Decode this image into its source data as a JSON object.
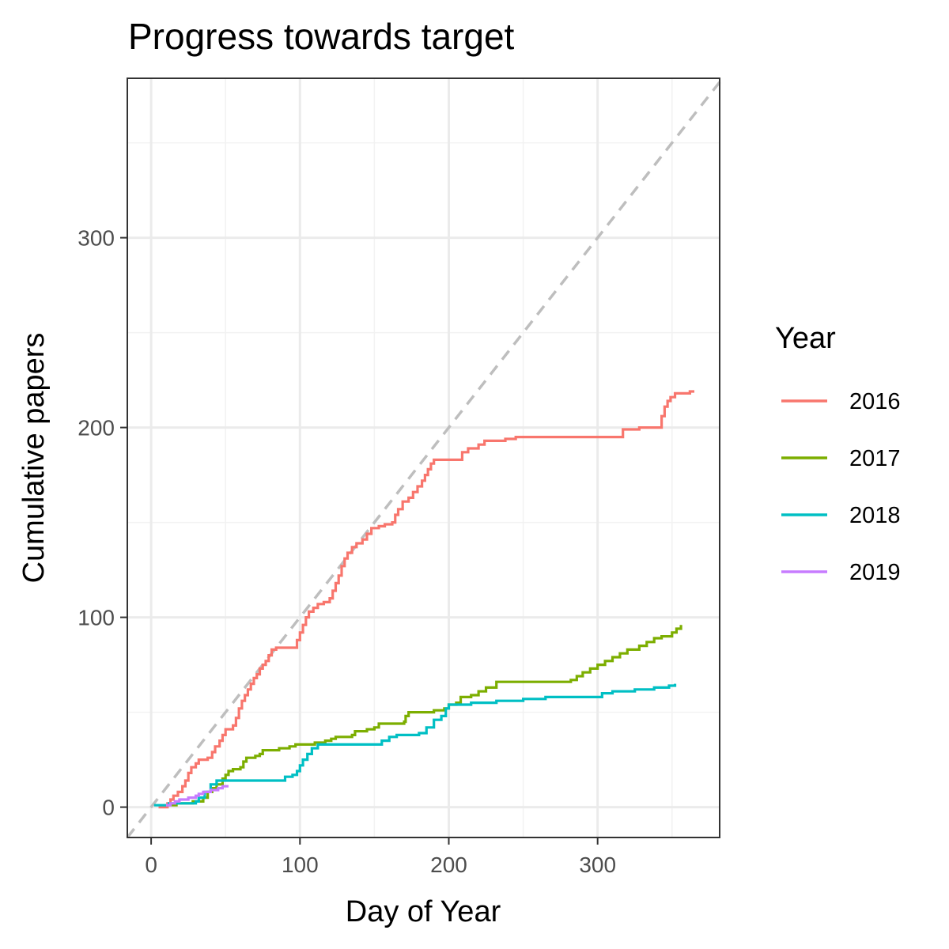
{
  "chart_data": {
    "type": "line",
    "title": "Progress towards target",
    "xlabel": "Day of Year",
    "ylabel": "Cumulative papers",
    "xlim": [
      -16,
      382
    ],
    "ylim": [
      -16,
      384
    ],
    "x_ticks": [
      0,
      100,
      200,
      300
    ],
    "y_ticks": [
      0,
      100,
      200,
      300
    ],
    "x_tick_labels": [
      "0",
      "100",
      "200",
      "300"
    ],
    "y_tick_labels": [
      "0",
      "100",
      "200",
      "300"
    ],
    "grid": true,
    "reference_line": {
      "style": "dashed",
      "color": "#bebebe",
      "slope": 1,
      "intercept": 0
    },
    "legend": {
      "title": "Year",
      "position": "right"
    },
    "series": [
      {
        "name": "2016",
        "color": "#F8766D",
        "points": [
          [
            5,
            0
          ],
          [
            11,
            2
          ],
          [
            13,
            4
          ],
          [
            15,
            6
          ],
          [
            18,
            8
          ],
          [
            21,
            11
          ],
          [
            23,
            14
          ],
          [
            25,
            18
          ],
          [
            27,
            21
          ],
          [
            30,
            23
          ],
          [
            32,
            25
          ],
          [
            38,
            26
          ],
          [
            41,
            29
          ],
          [
            43,
            32
          ],
          [
            46,
            35
          ],
          [
            48,
            38
          ],
          [
            50,
            41
          ],
          [
            55,
            43
          ],
          [
            57,
            47
          ],
          [
            59,
            52
          ],
          [
            61,
            56
          ],
          [
            63,
            59
          ],
          [
            65,
            62
          ],
          [
            67,
            65
          ],
          [
            69,
            68
          ],
          [
            71,
            70
          ],
          [
            73,
            73
          ],
          [
            75,
            75
          ],
          [
            77,
            77
          ],
          [
            79,
            80
          ],
          [
            81,
            83
          ],
          [
            84,
            84
          ],
          [
            97,
            84
          ],
          [
            98,
            88
          ],
          [
            100,
            92
          ],
          [
            102,
            96
          ],
          [
            104,
            100
          ],
          [
            106,
            103
          ],
          [
            109,
            105
          ],
          [
            112,
            107
          ],
          [
            116,
            108
          ],
          [
            120,
            110
          ],
          [
            122,
            114
          ],
          [
            124,
            118
          ],
          [
            126,
            122
          ],
          [
            128,
            127
          ],
          [
            130,
            131
          ],
          [
            132,
            134
          ],
          [
            135,
            137
          ],
          [
            138,
            139
          ],
          [
            142,
            141
          ],
          [
            145,
            144
          ],
          [
            148,
            147
          ],
          [
            153,
            148
          ],
          [
            157,
            149
          ],
          [
            162,
            150
          ],
          [
            164,
            154
          ],
          [
            166,
            157
          ],
          [
            169,
            161
          ],
          [
            173,
            163
          ],
          [
            176,
            166
          ],
          [
            179,
            169
          ],
          [
            182,
            172
          ],
          [
            184,
            175
          ],
          [
            186,
            178
          ],
          [
            188,
            181
          ],
          [
            190,
            183
          ],
          [
            207,
            183
          ],
          [
            209,
            187
          ],
          [
            213,
            189
          ],
          [
            220,
            191
          ],
          [
            224,
            193
          ],
          [
            238,
            194
          ],
          [
            245,
            195
          ],
          [
            315,
            195
          ],
          [
            317,
            199
          ],
          [
            321,
            199
          ],
          [
            328,
            200
          ],
          [
            342,
            200
          ],
          [
            343,
            206
          ],
          [
            345,
            211
          ],
          [
            347,
            214
          ],
          [
            349,
            216
          ],
          [
            352,
            218
          ],
          [
            362,
            219
          ],
          [
            365,
            219
          ]
        ]
      },
      {
        "name": "2017",
        "color": "#7CAE00",
        "points": [
          [
            10,
            1
          ],
          [
            17,
            2
          ],
          [
            28,
            3
          ],
          [
            35,
            5
          ],
          [
            38,
            8
          ],
          [
            41,
            10
          ],
          [
            44,
            12
          ],
          [
            48,
            15
          ],
          [
            50,
            17
          ],
          [
            52,
            19
          ],
          [
            55,
            20
          ],
          [
            60,
            21
          ],
          [
            62,
            24
          ],
          [
            64,
            26
          ],
          [
            70,
            27
          ],
          [
            73,
            28
          ],
          [
            75,
            30
          ],
          [
            86,
            31
          ],
          [
            93,
            32
          ],
          [
            97,
            33
          ],
          [
            108,
            33
          ],
          [
            110,
            34
          ],
          [
            117,
            35
          ],
          [
            121,
            36
          ],
          [
            124,
            37
          ],
          [
            135,
            38
          ],
          [
            137,
            40
          ],
          [
            145,
            41
          ],
          [
            150,
            42
          ],
          [
            153,
            44
          ],
          [
            170,
            45
          ],
          [
            171,
            48
          ],
          [
            173,
            50
          ],
          [
            190,
            51
          ],
          [
            197,
            52
          ],
          [
            200,
            54
          ],
          [
            205,
            55
          ],
          [
            208,
            58
          ],
          [
            215,
            59
          ],
          [
            220,
            61
          ],
          [
            225,
            63
          ],
          [
            232,
            66
          ],
          [
            282,
            67
          ],
          [
            286,
            69
          ],
          [
            290,
            71
          ],
          [
            295,
            73
          ],
          [
            300,
            75
          ],
          [
            305,
            77
          ],
          [
            310,
            79
          ],
          [
            315,
            81
          ],
          [
            320,
            83
          ],
          [
            328,
            85
          ],
          [
            333,
            87
          ],
          [
            338,
            89
          ],
          [
            343,
            90
          ],
          [
            350,
            92
          ],
          [
            353,
            94
          ],
          [
            356,
            96
          ]
        ]
      },
      {
        "name": "2018",
        "color": "#00BFC4",
        "points": [
          [
            2,
            1
          ],
          [
            12,
            2
          ],
          [
            30,
            3
          ],
          [
            32,
            5
          ],
          [
            36,
            8
          ],
          [
            40,
            12
          ],
          [
            44,
            14
          ],
          [
            89,
            14
          ],
          [
            90,
            16
          ],
          [
            95,
            17
          ],
          [
            98,
            19
          ],
          [
            100,
            22
          ],
          [
            102,
            25
          ],
          [
            105,
            28
          ],
          [
            108,
            31
          ],
          [
            112,
            33
          ],
          [
            150,
            33
          ],
          [
            155,
            35
          ],
          [
            160,
            37
          ],
          [
            165,
            38
          ],
          [
            180,
            39
          ],
          [
            185,
            42
          ],
          [
            190,
            46
          ],
          [
            195,
            48
          ],
          [
            198,
            52
          ],
          [
            200,
            54
          ],
          [
            215,
            55
          ],
          [
            232,
            56
          ],
          [
            250,
            57
          ],
          [
            265,
            58
          ],
          [
            298,
            58
          ],
          [
            303,
            60
          ],
          [
            310,
            61
          ],
          [
            325,
            62
          ],
          [
            338,
            63
          ],
          [
            348,
            64
          ],
          [
            352,
            65
          ]
        ]
      },
      {
        "name": "2019",
        "color": "#C77CFF",
        "points": [
          [
            10,
            1
          ],
          [
            13,
            2
          ],
          [
            16,
            3
          ],
          [
            19,
            4
          ],
          [
            25,
            5
          ],
          [
            30,
            6
          ],
          [
            32,
            7
          ],
          [
            35,
            8
          ],
          [
            40,
            9
          ],
          [
            45,
            10
          ],
          [
            48,
            11
          ],
          [
            52,
            11
          ]
        ]
      }
    ]
  }
}
